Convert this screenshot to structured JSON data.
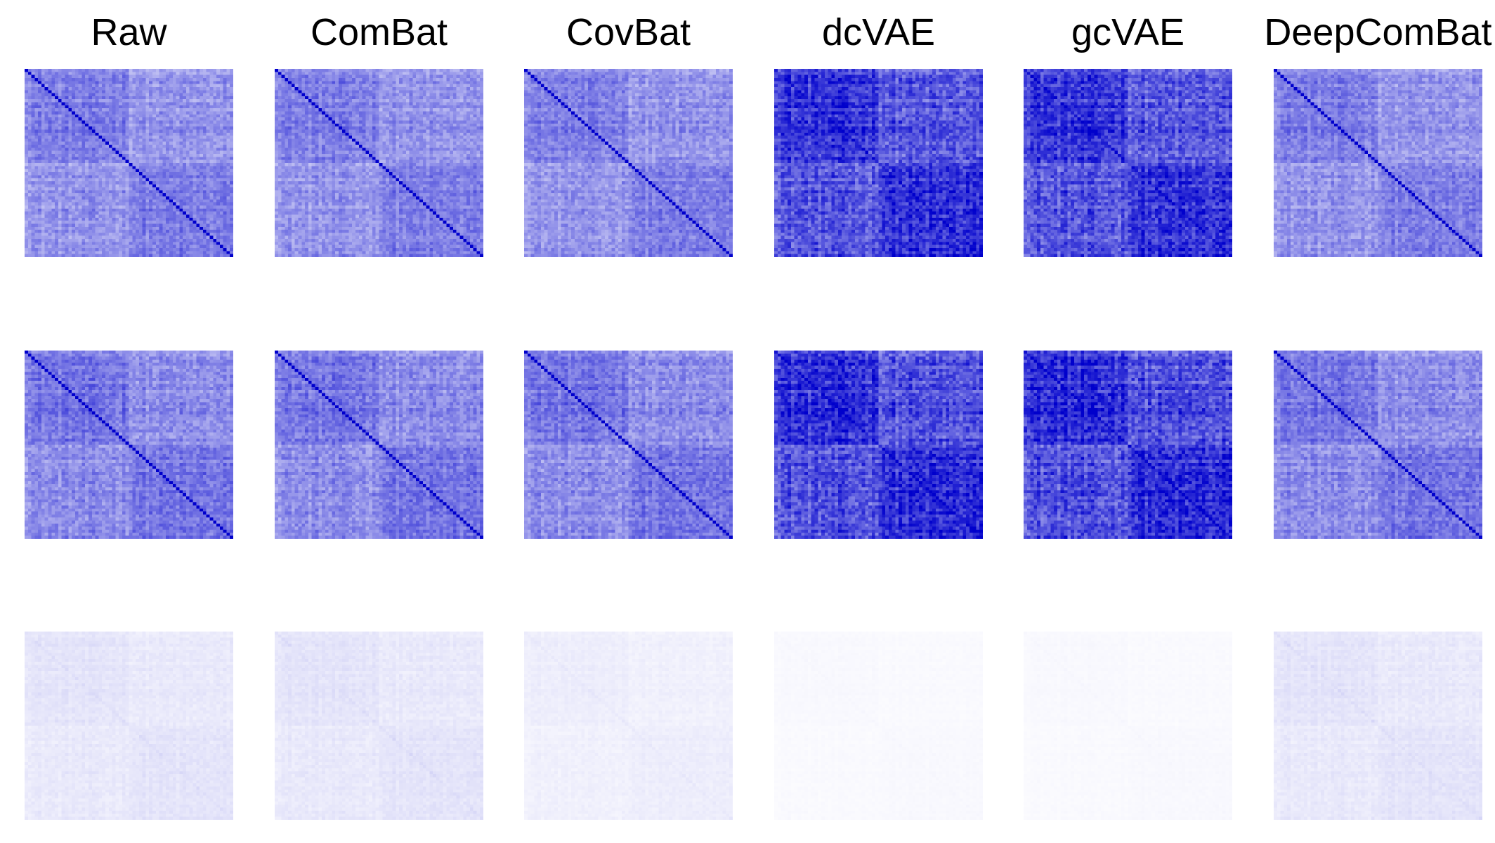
{
  "chart_data": {
    "type": "heatmap",
    "panel_layout": {
      "rows": 3,
      "columns": 6
    },
    "columns": [
      {
        "title": "Raw",
        "strength": [
          0.58,
          0.62,
          0.12
        ]
      },
      {
        "title": "ComBat",
        "strength": [
          0.58,
          0.62,
          0.12
        ]
      },
      {
        "title": "CovBat",
        "strength": [
          0.58,
          0.62,
          0.08
        ]
      },
      {
        "title": "dcVAE",
        "strength": [
          0.92,
          0.94,
          0.03
        ]
      },
      {
        "title": "gcVAE",
        "strength": [
          0.91,
          0.95,
          0.03
        ]
      },
      {
        "title": "DeepComBat",
        "strength": [
          0.58,
          0.62,
          0.12
        ]
      }
    ],
    "row_labels": [
      "",
      "",
      ""
    ],
    "matrix_size": 62,
    "colors": {
      "high": "#0000cc",
      "low": "#ffffff"
    }
  }
}
